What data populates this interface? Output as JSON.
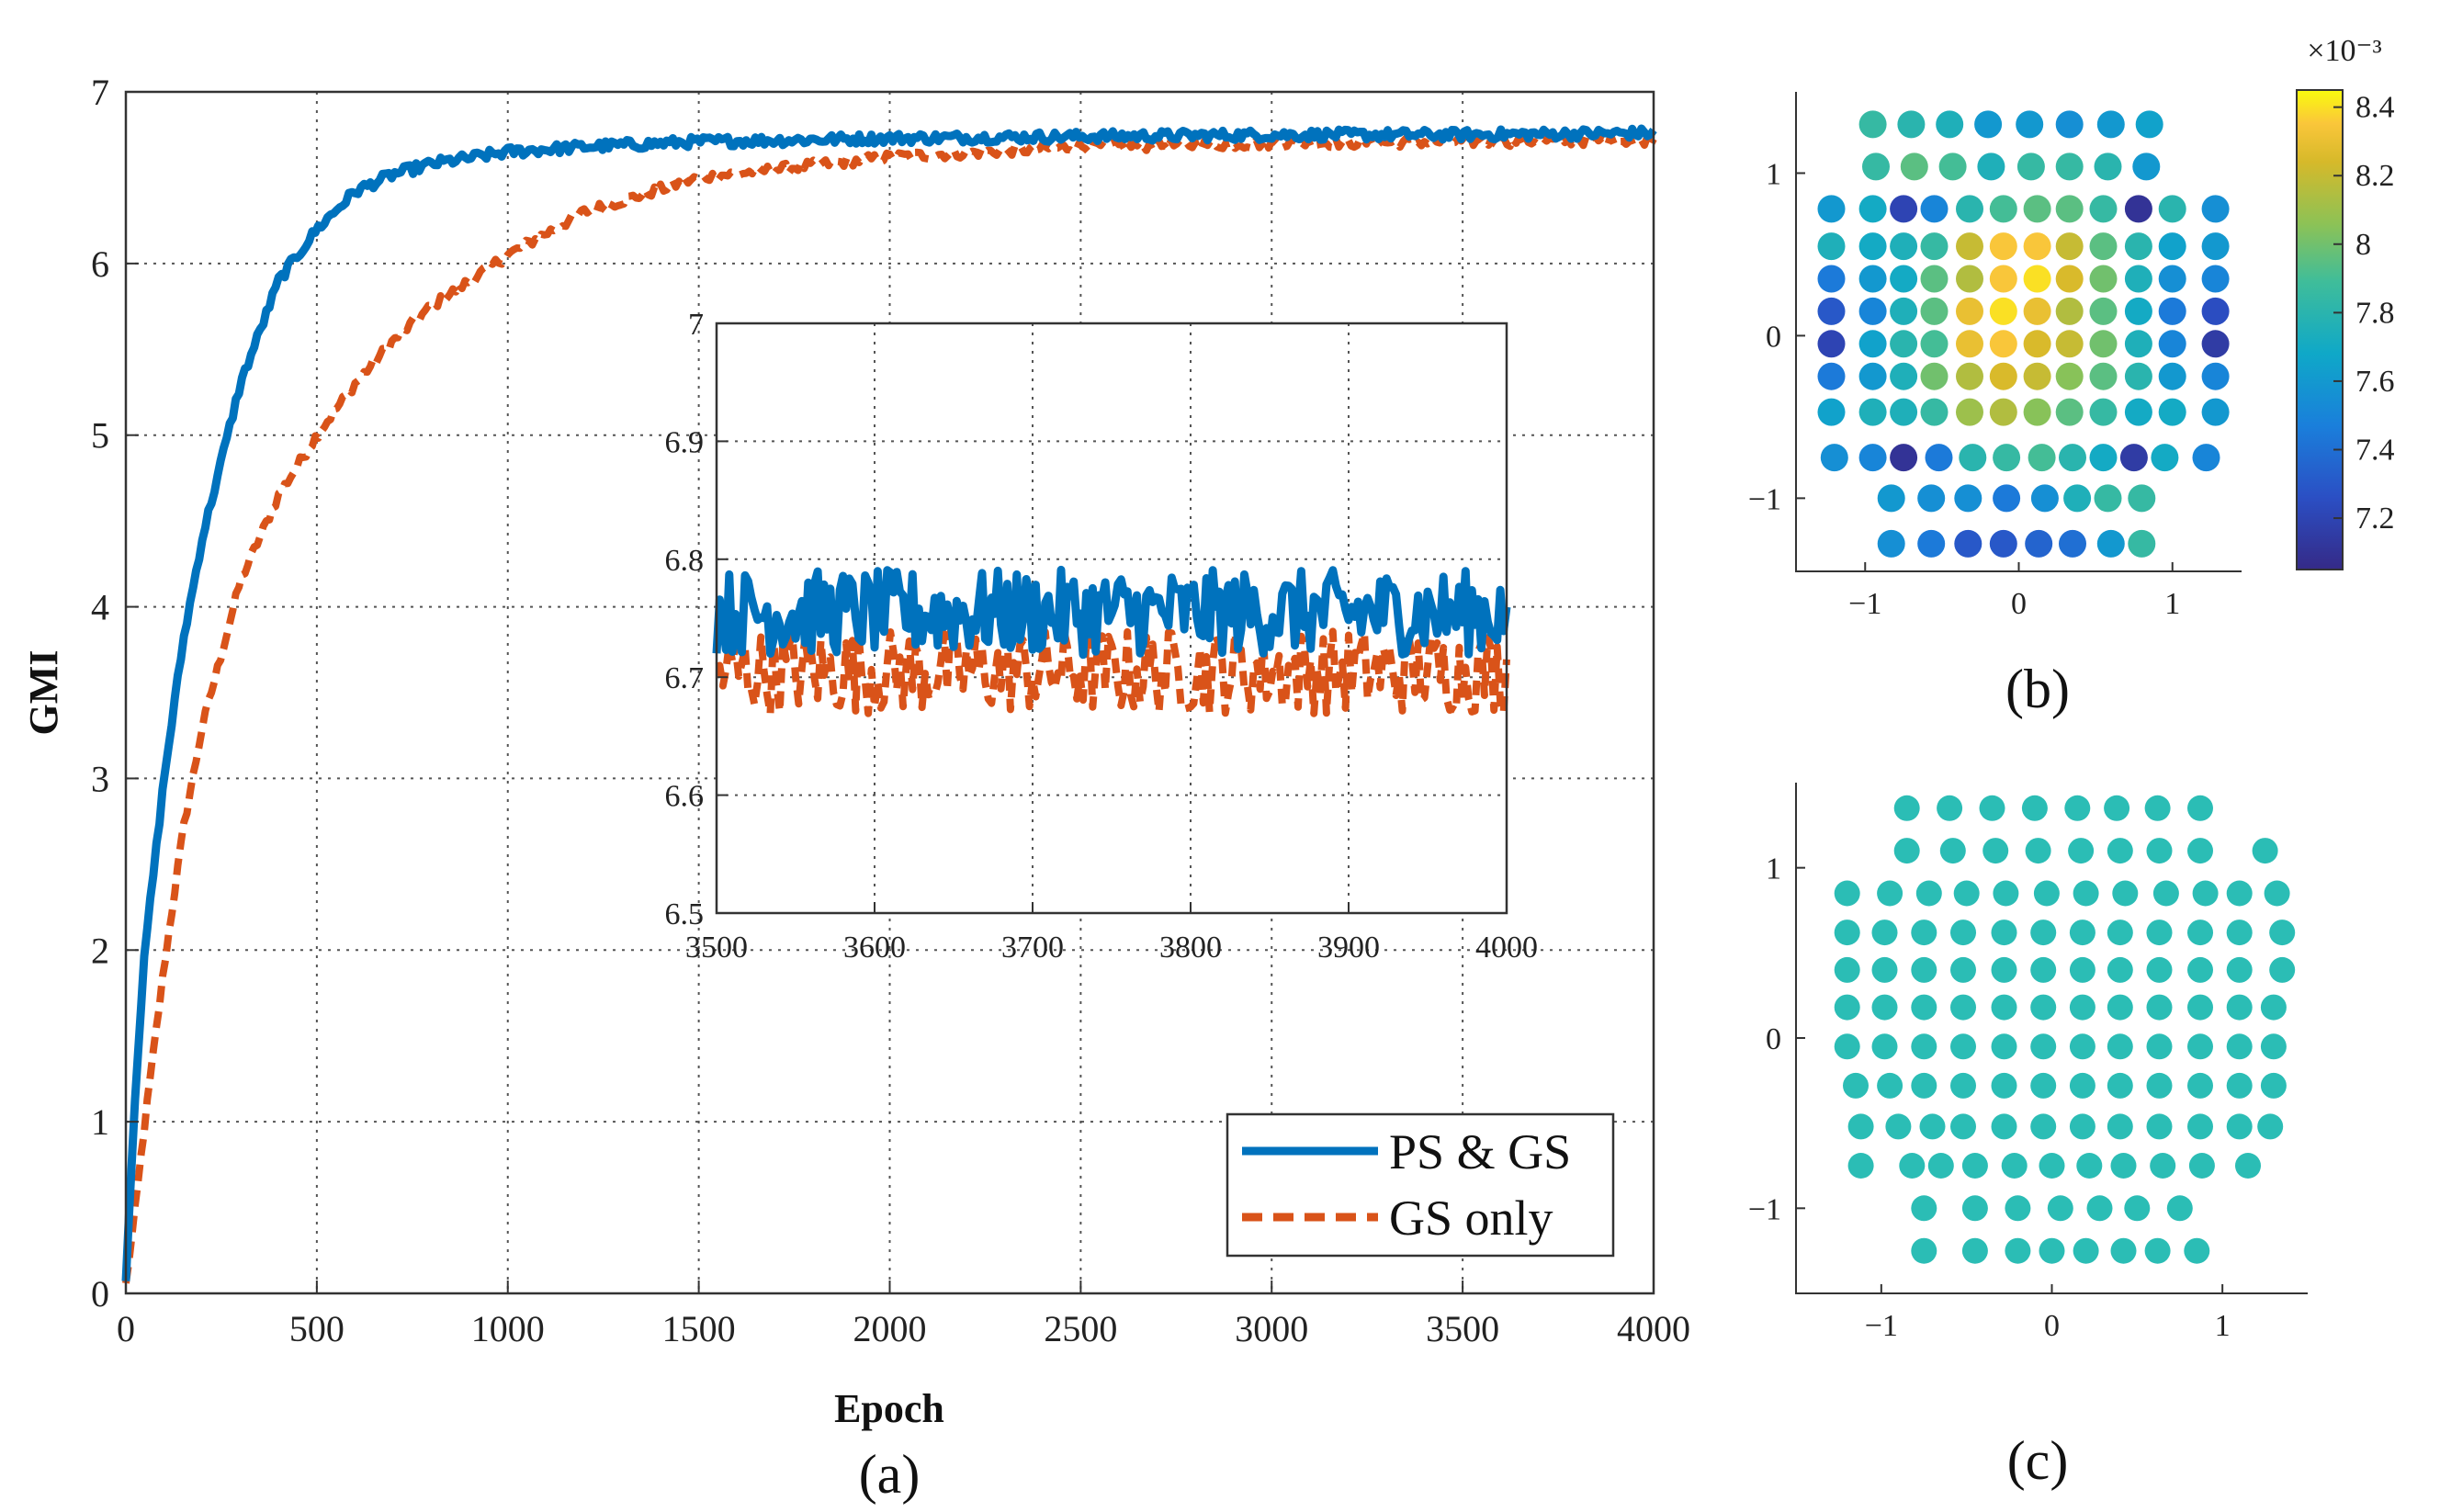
{
  "chart_data": [
    {
      "id": "a",
      "type": "line",
      "panel_label": "(a)",
      "xlabel": "Epoch",
      "ylabel": "GMI",
      "xlim": [
        0,
        4000
      ],
      "ylim": [
        0,
        7
      ],
      "xticks": [
        0,
        500,
        1000,
        1500,
        2000,
        2500,
        3000,
        3500,
        4000
      ],
      "yticks": [
        0,
        1,
        2,
        3,
        4,
        5,
        6,
        7
      ],
      "grid": true,
      "legend_position": "bottom-right",
      "series": [
        {
          "name": "PS & GS",
          "color": "#0072BD",
          "style": "solid",
          "x": [
            0,
            25,
            50,
            100,
            150,
            200,
            300,
            400,
            500,
            600,
            700,
            800,
            1000,
            1200,
            1500,
            2000,
            2500,
            3000,
            3500,
            4000
          ],
          "y": [
            0.1,
            1.2,
            2.0,
            3.0,
            3.8,
            4.4,
            5.3,
            5.9,
            6.2,
            6.42,
            6.52,
            6.58,
            6.65,
            6.68,
            6.71,
            6.73,
            6.74,
            6.75,
            6.75,
            6.76
          ]
        },
        {
          "name": "GS only",
          "color": "#D95319",
          "style": "dashed",
          "x": [
            0,
            25,
            50,
            100,
            150,
            200,
            300,
            400,
            500,
            600,
            700,
            800,
            1000,
            1200,
            1500,
            2000,
            2500,
            3000,
            3500,
            4000
          ],
          "y": [
            0.05,
            0.5,
            1.0,
            1.9,
            2.7,
            3.3,
            4.15,
            4.65,
            5.0,
            5.3,
            5.55,
            5.75,
            6.05,
            6.3,
            6.5,
            6.62,
            6.68,
            6.7,
            6.71,
            6.72
          ]
        }
      ],
      "inset": {
        "type": "line",
        "xlim": [
          3500,
          4000
        ],
        "ylim": [
          6.5,
          7
        ],
        "xticks": [
          3500,
          3600,
          3700,
          3800,
          3900,
          4000
        ],
        "yticks": [
          6.5,
          6.6,
          6.7,
          6.8,
          6.9,
          7
        ],
        "grid": true,
        "series": [
          {
            "name": "PS & GS",
            "color": "#0072BD",
            "style": "solid",
            "mean": 6.755,
            "range": [
              6.72,
              6.8
            ]
          },
          {
            "name": "GS only",
            "color": "#D95319",
            "style": "dashed",
            "mean": 6.705,
            "range": [
              6.66,
              6.74
            ]
          }
        ]
      }
    },
    {
      "id": "b",
      "type": "scatter",
      "panel_label": "(b)",
      "xlim": [
        -1.45,
        1.45
      ],
      "ylim": [
        -1.45,
        1.5
      ],
      "xticks": [
        -1,
        0,
        1
      ],
      "yticks": [
        -1,
        0,
        1
      ],
      "grid": false,
      "colorbar": {
        "exponent_label": "×10⁻³",
        "range": [
          7.05,
          8.45
        ],
        "ticks": [
          "7.2",
          "7.4",
          "7.6",
          "7.8",
          "8",
          "8.2",
          "8.4"
        ],
        "tick_values": [
          7.2,
          7.4,
          7.6,
          7.8,
          8.0,
          8.2,
          8.4
        ]
      },
      "rows": [
        {
          "y": 1.3,
          "x": [
            -0.95,
            -0.7,
            -0.45,
            -0.2,
            0.07,
            0.33,
            0.6,
            0.85
          ],
          "c": [
            7.85,
            7.8,
            7.75,
            7.6,
            7.6,
            7.55,
            7.6,
            7.65
          ]
        },
        {
          "y": 1.04,
          "x": [
            -0.93,
            -0.68,
            -0.43,
            -0.18,
            0.08,
            0.33,
            0.58,
            0.83
          ],
          "c": [
            7.85,
            7.95,
            7.9,
            7.75,
            7.85,
            7.85,
            7.8,
            7.6
          ]
        },
        {
          "y": 0.78,
          "x": [
            -1.22,
            -0.95,
            -0.75,
            -0.55,
            -0.32,
            -0.1,
            0.12,
            0.33,
            0.55,
            0.78,
            1.0,
            1.28
          ],
          "c": [
            7.6,
            7.7,
            7.2,
            7.5,
            7.8,
            7.9,
            7.95,
            7.95,
            7.85,
            7.1,
            7.8,
            7.55
          ]
        },
        {
          "y": 0.55,
          "x": [
            -1.22,
            -0.95,
            -0.75,
            -0.55,
            -0.32,
            -0.1,
            0.12,
            0.33,
            0.55,
            0.78,
            1.0,
            1.28
          ],
          "c": [
            7.75,
            7.7,
            7.75,
            7.85,
            8.2,
            8.35,
            8.35,
            8.2,
            7.95,
            7.8,
            7.65,
            7.6
          ]
        },
        {
          "y": 0.35,
          "x": [
            -1.22,
            -0.95,
            -0.75,
            -0.55,
            -0.32,
            -0.1,
            0.12,
            0.33,
            0.55,
            0.78,
            1.0,
            1.28
          ],
          "c": [
            7.45,
            7.6,
            7.7,
            7.95,
            8.15,
            8.35,
            8.4,
            8.25,
            8.0,
            7.75,
            7.55,
            7.5
          ]
        },
        {
          "y": 0.15,
          "x": [
            -1.22,
            -0.95,
            -0.75,
            -0.55,
            -0.32,
            -0.1,
            0.12,
            0.33,
            0.55,
            0.78,
            1.0,
            1.28
          ],
          "c": [
            7.3,
            7.5,
            7.75,
            7.95,
            8.3,
            8.4,
            8.3,
            8.15,
            7.95,
            7.7,
            7.45,
            7.25
          ]
        },
        {
          "y": -0.05,
          "x": [
            -1.22,
            -0.95,
            -0.75,
            -0.55,
            -0.32,
            -0.1,
            0.12,
            0.33,
            0.55,
            0.78,
            1.0,
            1.28
          ],
          "c": [
            7.2,
            7.65,
            7.8,
            7.9,
            8.3,
            8.35,
            8.25,
            8.2,
            8.0,
            7.75,
            7.5,
            7.15
          ]
        },
        {
          "y": -0.25,
          "x": [
            -1.22,
            -0.95,
            -0.75,
            -0.55,
            -0.32,
            -0.1,
            0.12,
            0.33,
            0.55,
            0.78,
            1.0,
            1.28
          ],
          "c": [
            7.45,
            7.6,
            7.75,
            8.0,
            8.15,
            8.25,
            8.2,
            8.05,
            7.95,
            7.8,
            7.6,
            7.5
          ]
        },
        {
          "y": -0.47,
          "x": [
            -1.22,
            -0.95,
            -0.75,
            -0.55,
            -0.32,
            -0.1,
            0.12,
            0.33,
            0.55,
            0.78,
            1.0,
            1.28
          ],
          "c": [
            7.65,
            7.75,
            7.75,
            7.85,
            8.1,
            8.15,
            8.05,
            7.95,
            7.85,
            7.7,
            7.7,
            7.6
          ]
        },
        {
          "y": -0.75,
          "x": [
            -1.2,
            -0.95,
            -0.75,
            -0.52,
            -0.3,
            -0.08,
            0.15,
            0.35,
            0.55,
            0.75,
            0.95,
            1.22
          ],
          "c": [
            7.55,
            7.5,
            7.1,
            7.45,
            7.8,
            7.85,
            7.9,
            7.8,
            7.7,
            7.15,
            7.7,
            7.5
          ]
        },
        {
          "y": -1.0,
          "x": [
            -0.83,
            -0.57,
            -0.33,
            -0.08,
            0.17,
            0.38,
            0.58,
            0.8
          ],
          "c": [
            7.6,
            7.55,
            7.55,
            7.45,
            7.55,
            7.75,
            7.85,
            7.85
          ]
        },
        {
          "y": -1.28,
          "x": [
            -0.83,
            -0.57,
            -0.33,
            -0.1,
            0.13,
            0.35,
            0.6,
            0.8
          ],
          "c": [
            7.55,
            7.45,
            7.3,
            7.3,
            7.35,
            7.4,
            7.6,
            7.85
          ]
        }
      ]
    },
    {
      "id": "c",
      "type": "scatter",
      "panel_label": "(c)",
      "xlim": [
        -1.5,
        1.5
      ],
      "ylim": [
        -1.5,
        1.5
      ],
      "xticks": [
        -1,
        0,
        1
      ],
      "yticks": [
        -1,
        0,
        1
      ],
      "grid": false,
      "marker_color": "#2BBDB5",
      "rows": [
        {
          "y": 1.35,
          "x": [
            -0.85,
            -0.6,
            -0.35,
            -0.1,
            0.15,
            0.38,
            0.62,
            0.87
          ]
        },
        {
          "y": 1.1,
          "x": [
            -0.85,
            -0.58,
            -0.33,
            -0.08,
            0.17,
            0.4,
            0.63,
            0.87,
            1.25
          ]
        },
        {
          "y": 0.85,
          "x": [
            -1.2,
            -0.95,
            -0.72,
            -0.5,
            -0.27,
            -0.03,
            0.2,
            0.43,
            0.67,
            0.9,
            1.1,
            1.32
          ]
        },
        {
          "y": 0.62,
          "x": [
            -1.2,
            -0.98,
            -0.75,
            -0.52,
            -0.28,
            -0.05,
            0.18,
            0.4,
            0.63,
            0.87,
            1.1,
            1.35
          ]
        },
        {
          "y": 0.4,
          "x": [
            -1.2,
            -0.98,
            -0.75,
            -0.52,
            -0.28,
            -0.05,
            0.18,
            0.4,
            0.63,
            0.87,
            1.1,
            1.35
          ]
        },
        {
          "y": 0.18,
          "x": [
            -1.2,
            -0.98,
            -0.75,
            -0.52,
            -0.28,
            -0.05,
            0.18,
            0.4,
            0.63,
            0.87,
            1.1,
            1.3
          ]
        },
        {
          "y": -0.05,
          "x": [
            -1.2,
            -0.98,
            -0.75,
            -0.52,
            -0.28,
            -0.05,
            0.18,
            0.4,
            0.63,
            0.87,
            1.1,
            1.3
          ]
        },
        {
          "y": -0.28,
          "x": [
            -1.15,
            -0.95,
            -0.75,
            -0.52,
            -0.28,
            -0.05,
            0.18,
            0.4,
            0.63,
            0.87,
            1.1,
            1.3
          ]
        },
        {
          "y": -0.52,
          "x": [
            -1.12,
            -0.9,
            -0.7,
            -0.52,
            -0.28,
            -0.05,
            0.18,
            0.4,
            0.63,
            0.87,
            1.1,
            1.28
          ]
        },
        {
          "y": -0.75,
          "x": [
            -1.12,
            -0.82,
            -0.65,
            -0.45,
            -0.22,
            0.0,
            0.22,
            0.42,
            0.65,
            0.88,
            1.15
          ]
        },
        {
          "y": -1.0,
          "x": [
            -0.75,
            -0.45,
            -0.2,
            0.05,
            0.28,
            0.5,
            0.75
          ]
        },
        {
          "y": -1.25,
          "x": [
            -0.75,
            -0.45,
            -0.2,
            0.0,
            0.2,
            0.42,
            0.62,
            0.85
          ]
        }
      ]
    }
  ]
}
